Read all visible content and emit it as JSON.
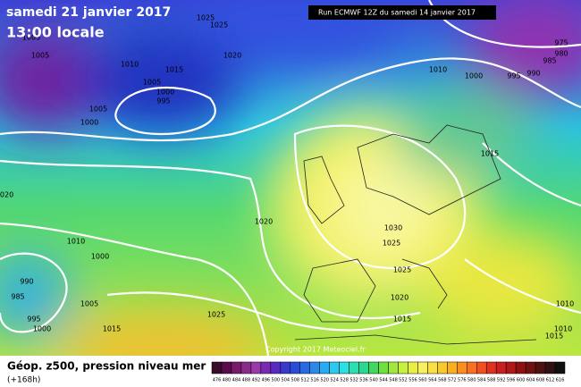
{
  "header": {
    "date": "samedi 21 janvier 2017",
    "time": "13:00 locale",
    "run": "Run ECMWF 12Z du samedi 14 janvier 2017"
  },
  "map": {
    "copyright": "Copyright 2017 Meteociel.fr",
    "isobar_labels": [
      "1025",
      "1025",
      "1005",
      "1005",
      "1010",
      "1015",
      "1020",
      "1005",
      "1000",
      "995",
      "1005",
      "1000",
      "1010",
      "1000",
      "995",
      "990",
      "985",
      "980",
      "975",
      "1015",
      "1020",
      "1020",
      "1010",
      "1000",
      "1030",
      "1025",
      "990",
      "985",
      "995",
      "1000",
      "1005",
      "1015",
      "1025",
      "1025",
      "1020",
      "1015",
      "1010",
      "1010",
      "1015"
    ]
  },
  "footer": {
    "title": "Géop. z500, pression niveau mer",
    "lead": "(+168h)",
    "scale_labels": [
      "476",
      "480",
      "484",
      "488",
      "492",
      "496",
      "500",
      "504",
      "508",
      "512",
      "516",
      "520",
      "524",
      "528",
      "532",
      "536",
      "540",
      "544",
      "548",
      "552",
      "556",
      "560",
      "564",
      "568",
      "572",
      "576",
      "580",
      "584",
      "588",
      "592",
      "596",
      "600",
      "604",
      "608",
      "612",
      "616"
    ]
  }
}
